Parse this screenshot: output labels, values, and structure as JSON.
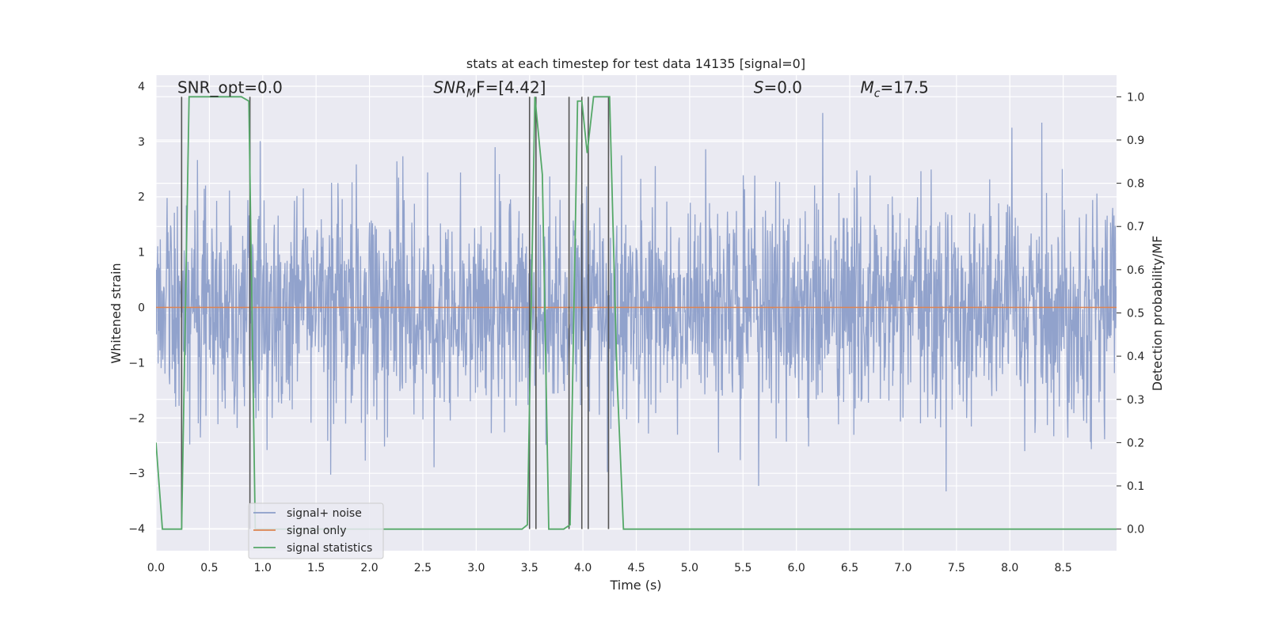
{
  "chart_data": {
    "type": "line",
    "title": "stats at each timestep for test data 14135 [signal=0]",
    "xlabel": "Time (s)",
    "ylabel": "Whitened strain",
    "y2label": "Detection probability/MF",
    "xlim": [
      0,
      9
    ],
    "ylim": [
      -4.4,
      4.2
    ],
    "y2lim": [
      -0.05,
      1.05
    ],
    "x_ticks": [
      0.0,
      0.5,
      1.0,
      1.5,
      2.0,
      2.5,
      3.0,
      3.5,
      4.0,
      4.5,
      5.0,
      5.5,
      6.0,
      6.5,
      7.0,
      7.5,
      8.0,
      8.5
    ],
    "x_tick_labels": [
      "0.0",
      "0.5",
      "1.0",
      "1.5",
      "2.0",
      "2.5",
      "3.0",
      "3.5",
      "4.0",
      "4.5",
      "5.0",
      "5.5",
      "6.0",
      "6.5",
      "7.0",
      "7.5",
      "8.0",
      "8.5"
    ],
    "y_ticks": [
      -4,
      -3,
      -2,
      -1,
      0,
      1,
      2,
      3,
      4
    ],
    "y_tick_labels": [
      "−4",
      "−3",
      "−2",
      "−1",
      "0",
      "1",
      "2",
      "3",
      "4"
    ],
    "y2_ticks": [
      0.0,
      0.1,
      0.2,
      0.3,
      0.4,
      0.5,
      0.6,
      0.7,
      0.8,
      0.9,
      1.0
    ],
    "y2_tick_labels": [
      "0.0",
      "0.1",
      "0.2",
      "0.3",
      "0.4",
      "0.5",
      "0.6",
      "0.7",
      "0.8",
      "0.9",
      "1.0"
    ],
    "grid": true,
    "legend_position": "lower-left",
    "annotations": [
      {
        "text": "SNR_opt=0.0",
        "x": 0.2,
        "y": 3.88
      },
      {
        "text": "SNR",
        "sub": "M",
        "rest": "F=[4.42]",
        "italic": true,
        "x": 2.6,
        "y": 3.88
      },
      {
        "text": "S",
        "rest": "=0.0",
        "italic": true,
        "x": 5.6,
        "y": 3.88
      },
      {
        "text": "M",
        "sub": "c",
        "rest": "=17.5",
        "italic": true,
        "x": 6.6,
        "y": 3.88
      }
    ],
    "series": [
      {
        "name": "signal+ noise",
        "color": "#8c9ec9",
        "axis": "left",
        "noise_sigma": 1.0,
        "noise_points": 2250,
        "x_range": [
          0,
          9
        ]
      },
      {
        "name": "signal only",
        "color": "#dd8452",
        "axis": "left",
        "x": [
          0,
          9
        ],
        "y": [
          0,
          0
        ]
      },
      {
        "name": "signal statistics",
        "color": "#55a868",
        "axis": "right",
        "x": [
          0.0,
          0.06,
          0.24,
          0.31,
          0.4,
          0.6,
          0.8,
          0.87,
          0.93,
          1.0,
          2.5,
          3.0,
          3.43,
          3.48,
          3.55,
          3.62,
          3.68,
          3.75,
          3.82,
          3.88,
          3.95,
          3.99,
          4.04,
          4.1,
          4.18,
          4.25,
          4.32,
          4.38,
          4.5,
          9.0
        ],
        "y": [
          0.2,
          0.0,
          0.0,
          1.0,
          1.0,
          1.0,
          1.0,
          0.99,
          0.0,
          0.0,
          0.0,
          0.0,
          0.0,
          0.01,
          1.0,
          0.82,
          0.0,
          0.0,
          0.0,
          0.01,
          0.99,
          0.99,
          0.87,
          1.0,
          1.0,
          1.0,
          0.35,
          0.0,
          0.0,
          0.0
        ]
      }
    ],
    "vertical_markers": {
      "color": "#555555",
      "x": [
        0.24,
        0.88,
        3.5,
        3.56,
        3.87,
        3.99,
        4.05,
        4.24
      ],
      "y_top": 1.0
    }
  }
}
